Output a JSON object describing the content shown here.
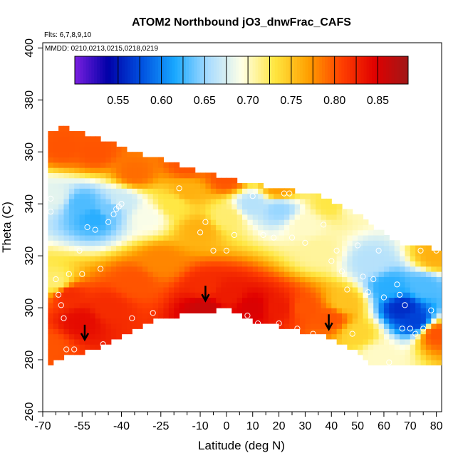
{
  "chart_data": {
    "type": "heatmap",
    "title": "ATOM2 Northbound jO3_dnwFrac_CAFS",
    "subtitle_flights": "Flts: 6,7,8,9,10",
    "subtitle_dates": "MMDD: 0210,0213,0215,0218,0219",
    "xlabel": "Latitude (deg N)",
    "ylabel": "Theta (C)",
    "xlim": [
      -70,
      82
    ],
    "ylim": [
      260,
      402
    ],
    "x_major_ticks": [
      -70,
      -55,
      -40,
      -25,
      -10,
      0,
      10,
      20,
      30,
      40,
      50,
      60,
      70,
      80
    ],
    "x_minor_ticks": [
      -65,
      -60,
      -50,
      -45,
      -35,
      -30,
      -20,
      -15,
      -5,
      5,
      15,
      25,
      35,
      45,
      55,
      65,
      75
    ],
    "y_ticks": [
      260,
      280,
      300,
      320,
      340,
      360,
      380,
      400
    ],
    "colorbar": {
      "min": 0.5,
      "max": 0.885,
      "ticks": [
        0.55,
        0.6,
        0.65,
        0.7,
        0.75,
        0.8,
        0.85
      ],
      "tick_labels": [
        "0.55",
        "0.60",
        "0.65",
        "0.70",
        "0.75",
        "0.80",
        "0.85"
      ],
      "colors": [
        "#7a1fe0",
        "#0000a8",
        "#0050e0",
        "#18a8ff",
        "#a8dcff",
        "#ffffe6",
        "#ffe640",
        "#ffa000",
        "#ff4000",
        "#e00000",
        "#a01818"
      ]
    },
    "grid": false,
    "field_latitudes": [
      -68,
      -64,
      -60,
      -55,
      -48,
      -40,
      -32,
      -25,
      -18,
      -12,
      -8,
      -4,
      0,
      4,
      8,
      14,
      20,
      26,
      32,
      38,
      44,
      50,
      54,
      58,
      62,
      66,
      70,
      74,
      78,
      81
    ],
    "field_thetas": [
      278,
      282,
      286,
      290,
      294,
      298,
      302,
      306,
      310,
      314,
      318,
      322,
      326,
      330,
      334,
      338,
      342,
      346,
      350,
      354,
      358,
      362,
      366,
      370
    ],
    "domain_top_theta": [
      367,
      369,
      369,
      367,
      365,
      362,
      359,
      357,
      355,
      353,
      352,
      351,
      350,
      349,
      348,
      347,
      346,
      345,
      344,
      342,
      339,
      336,
      333,
      330,
      327,
      325,
      324,
      323,
      323,
      322
    ],
    "domain_bottom_theta": [
      278,
      280,
      282,
      283,
      285,
      289,
      293,
      296,
      297,
      298,
      298,
      299,
      300,
      298,
      296,
      294,
      293,
      292,
      290,
      289,
      286,
      284,
      278,
      278,
      278,
      278,
      278,
      278,
      278,
      278
    ],
    "field_key_points": [
      {
        "lat": -66,
        "theta": 343,
        "value": 0.68
      },
      {
        "lat": -55,
        "theta": 340,
        "value": 0.63
      },
      {
        "lat": -50,
        "theta": 335,
        "value": 0.62
      },
      {
        "lat": -45,
        "theta": 338,
        "value": 0.64
      },
      {
        "lat": -40,
        "theta": 341,
        "value": 0.67
      },
      {
        "lat": -30,
        "theta": 335,
        "value": 0.69
      },
      {
        "lat": -20,
        "theta": 340,
        "value": 0.73
      },
      {
        "lat": -15,
        "theta": 345,
        "value": 0.76
      },
      {
        "lat": -10,
        "theta": 330,
        "value": 0.76
      },
      {
        "lat": 0,
        "theta": 335,
        "value": 0.72
      },
      {
        "lat": 10,
        "theta": 340,
        "value": 0.66
      },
      {
        "lat": 20,
        "theta": 338,
        "value": 0.65
      },
      {
        "lat": 30,
        "theta": 332,
        "value": 0.7
      },
      {
        "lat": 35,
        "theta": 322,
        "value": 0.71
      },
      {
        "lat": 48,
        "theta": 340,
        "value": 0.7
      },
      {
        "lat": 55,
        "theta": 318,
        "value": 0.66
      },
      {
        "lat": 62,
        "theta": 308,
        "value": 0.62
      },
      {
        "lat": 67,
        "theta": 300,
        "value": 0.56
      },
      {
        "lat": 72,
        "theta": 295,
        "value": 0.57
      },
      {
        "lat": 75,
        "theta": 308,
        "value": 0.63
      },
      {
        "lat": 80,
        "theta": 320,
        "value": 0.76
      },
      {
        "lat": -65,
        "theta": 310,
        "value": 0.72
      },
      {
        "lat": -60,
        "theta": 305,
        "value": 0.82
      },
      {
        "lat": -55,
        "theta": 295,
        "value": 0.84
      },
      {
        "lat": -45,
        "theta": 300,
        "value": 0.82
      },
      {
        "lat": -35,
        "theta": 310,
        "value": 0.8
      },
      {
        "lat": -25,
        "theta": 318,
        "value": 0.78
      },
      {
        "lat": -8,
        "theta": 308,
        "value": 0.82
      },
      {
        "lat": -8,
        "theta": 300,
        "value": 0.86
      },
      {
        "lat": 0,
        "theta": 305,
        "value": 0.83
      },
      {
        "lat": 10,
        "theta": 300,
        "value": 0.85
      },
      {
        "lat": 20,
        "theta": 300,
        "value": 0.83
      },
      {
        "lat": 30,
        "theta": 300,
        "value": 0.8
      },
      {
        "lat": 40,
        "theta": 296,
        "value": 0.8
      },
      {
        "lat": 45,
        "theta": 302,
        "value": 0.75
      },
      {
        "lat": 50,
        "theta": 290,
        "value": 0.74
      },
      {
        "lat": 58,
        "theta": 282,
        "value": 0.7
      },
      {
        "lat": -62,
        "theta": 362,
        "value": 0.8
      },
      {
        "lat": -50,
        "theta": 360,
        "value": 0.8
      },
      {
        "lat": -35,
        "theta": 352,
        "value": 0.79
      },
      {
        "lat": -15,
        "theta": 355,
        "value": 0.8
      },
      {
        "lat": 0,
        "theta": 350,
        "value": 0.8
      },
      {
        "lat": 20,
        "theta": 346,
        "value": 0.77
      },
      {
        "lat": 40,
        "theta": 340,
        "value": 0.73
      },
      {
        "lat": 80,
        "theta": 290,
        "value": 0.8
      },
      {
        "lat": -68,
        "theta": 285,
        "value": 0.8
      }
    ],
    "sample_points": [
      {
        "lat": -67,
        "theta": 342
      },
      {
        "lat": -67,
        "theta": 337
      },
      {
        "lat": -65,
        "theta": 311
      },
      {
        "lat": -64,
        "theta": 305
      },
      {
        "lat": -63,
        "theta": 301
      },
      {
        "lat": -62,
        "theta": 296
      },
      {
        "lat": -61,
        "theta": 284
      },
      {
        "lat": -60,
        "theta": 313
      },
      {
        "lat": -58,
        "theta": 284
      },
      {
        "lat": -56,
        "theta": 322
      },
      {
        "lat": -55,
        "theta": 313
      },
      {
        "lat": -53,
        "theta": 331
      },
      {
        "lat": -50,
        "theta": 330
      },
      {
        "lat": -48,
        "theta": 315
      },
      {
        "lat": -47,
        "theta": 286
      },
      {
        "lat": -45,
        "theta": 333
      },
      {
        "lat": -43,
        "theta": 336
      },
      {
        "lat": -42,
        "theta": 338
      },
      {
        "lat": -41,
        "theta": 339
      },
      {
        "lat": -40,
        "theta": 340
      },
      {
        "lat": -36,
        "theta": 296
      },
      {
        "lat": -28,
        "theta": 298
      },
      {
        "lat": -18,
        "theta": 346
      },
      {
        "lat": -10,
        "theta": 329
      },
      {
        "lat": -8,
        "theta": 333
      },
      {
        "lat": -5,
        "theta": 322
      },
      {
        "lat": 0,
        "theta": 322
      },
      {
        "lat": 3,
        "theta": 328
      },
      {
        "lat": 8,
        "theta": 297
      },
      {
        "lat": 10,
        "theta": 343
      },
      {
        "lat": 12,
        "theta": 294
      },
      {
        "lat": 14,
        "theta": 328
      },
      {
        "lat": 18,
        "theta": 327
      },
      {
        "lat": 20,
        "theta": 294
      },
      {
        "lat": 22,
        "theta": 344
      },
      {
        "lat": 24,
        "theta": 344
      },
      {
        "lat": 25,
        "theta": 327
      },
      {
        "lat": 27,
        "theta": 292
      },
      {
        "lat": 30,
        "theta": 325
      },
      {
        "lat": 33,
        "theta": 290
      },
      {
        "lat": 37,
        "theta": 332
      },
      {
        "lat": 40,
        "theta": 318
      },
      {
        "lat": 42,
        "theta": 322
      },
      {
        "lat": 44,
        "theta": 314
      },
      {
        "lat": 46,
        "theta": 307
      },
      {
        "lat": 48,
        "theta": 290
      },
      {
        "lat": 50,
        "theta": 324
      },
      {
        "lat": 52,
        "theta": 312
      },
      {
        "lat": 54,
        "theta": 306
      },
      {
        "lat": 56,
        "theta": 311
      },
      {
        "lat": 58,
        "theta": 322
      },
      {
        "lat": 60,
        "theta": 304
      },
      {
        "lat": 62,
        "theta": 279
      },
      {
        "lat": 65,
        "theta": 309
      },
      {
        "lat": 66,
        "theta": 305
      },
      {
        "lat": 67,
        "theta": 292
      },
      {
        "lat": 68,
        "theta": 301
      },
      {
        "lat": 70,
        "theta": 292
      },
      {
        "lat": 72,
        "theta": 290
      },
      {
        "lat": 74,
        "theta": 322
      },
      {
        "lat": 75,
        "theta": 292
      },
      {
        "lat": 78,
        "theta": 299
      },
      {
        "lat": 80,
        "theta": 322
      }
    ],
    "arrows": [
      {
        "lat": -54,
        "theta": 288
      },
      {
        "lat": -8,
        "theta": 303
      },
      {
        "lat": 39,
        "theta": 292
      }
    ]
  }
}
